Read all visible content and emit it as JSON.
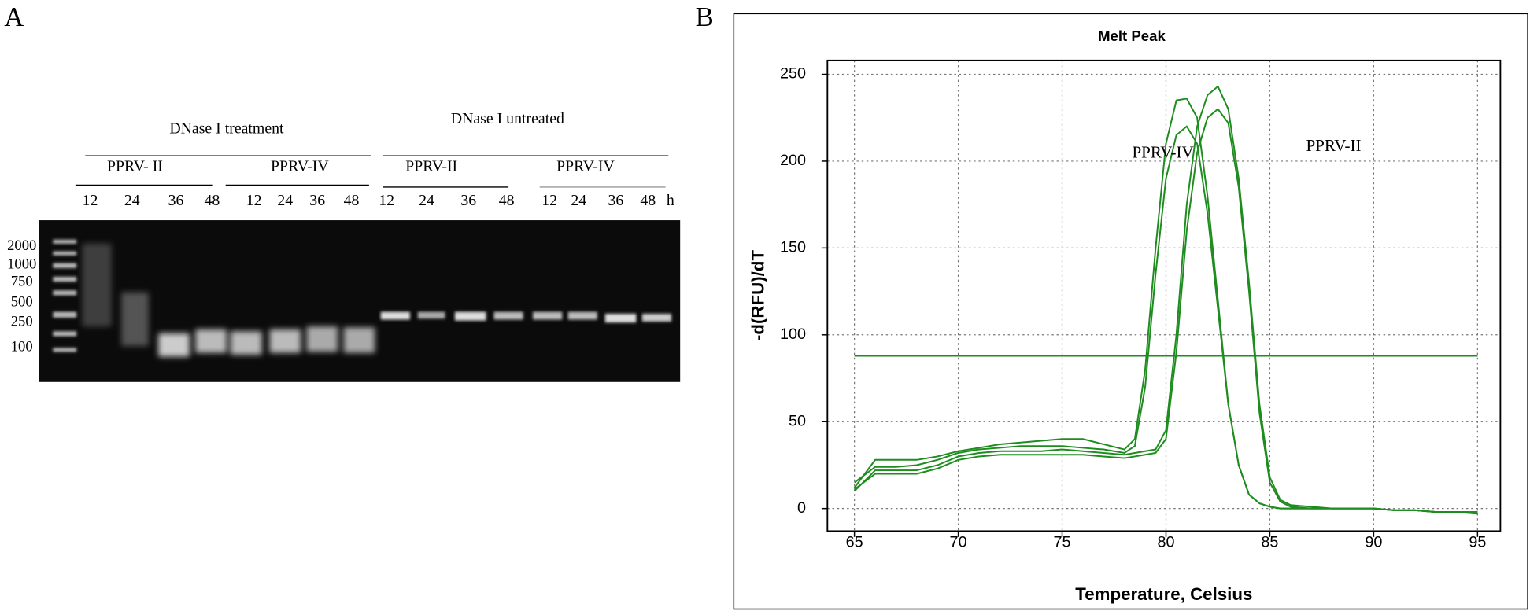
{
  "panel_a": {
    "label": "A",
    "headers": [
      "DNase I treatment",
      "DNase I untreated"
    ],
    "groups": [
      "PPRV- II",
      "PPRV-IV",
      "PPRV-II",
      "PPRV-IV"
    ],
    "lanes": [
      "12",
      "24",
      "36",
      "48",
      "12",
      "24",
      "36",
      "48",
      "12",
      "24",
      "36",
      "48",
      "12",
      "24",
      "36",
      "48",
      "h"
    ],
    "ladder": [
      "2000",
      "1000",
      "750",
      "500",
      "250",
      "100"
    ]
  },
  "panel_b_label": "B",
  "chart_data": {
    "type": "line",
    "title": "Melt Peak",
    "x_label": "Temperature, Celsius",
    "y_label": "-d(RFU)/dT",
    "annotations": [
      "PPRV-IV",
      "PPRV-II"
    ],
    "x": [
      65,
      66,
      67,
      68,
      69,
      70,
      71,
      72,
      73,
      74,
      75,
      76,
      77,
      78,
      78.5,
      79,
      79.5,
      80,
      80.5,
      81,
      81.5,
      82,
      82.5,
      83,
      83.5,
      84,
      84.5,
      85,
      85.5,
      86,
      87,
      88,
      89,
      90,
      91,
      92,
      93,
      94,
      95
    ],
    "series": [
      {
        "color": "#1e8c1e",
        "values": [
          12,
          28,
          28,
          28,
          30,
          33,
          35,
          37,
          38,
          39,
          40,
          40,
          37,
          34,
          40,
          80,
          150,
          210,
          235,
          236,
          225,
          180,
          120,
          60,
          25,
          8,
          3,
          1,
          0,
          0,
          0,
          0,
          0,
          0,
          -1,
          -1,
          -2,
          -2,
          -3
        ]
      },
      {
        "color": "#1e8c1e",
        "values": [
          15,
          24,
          24,
          25,
          28,
          32,
          34,
          35,
          36,
          36,
          36,
          35,
          34,
          32,
          36,
          70,
          135,
          190,
          215,
          220,
          210,
          170,
          115,
          60,
          25,
          8,
          3,
          1,
          0,
          0,
          0,
          0,
          0,
          0,
          -1,
          -1,
          -2,
          -2,
          -3
        ]
      },
      {
        "color": "#1e8c1e",
        "values": [
          10,
          22,
          22,
          22,
          25,
          30,
          32,
          33,
          33,
          33,
          34,
          33,
          32,
          31,
          32,
          33,
          34,
          45,
          100,
          175,
          220,
          238,
          243,
          230,
          190,
          130,
          60,
          18,
          5,
          2,
          1,
          0,
          0,
          0,
          -1,
          -1,
          -2,
          -2,
          -2
        ]
      },
      {
        "color": "#1e8c1e",
        "values": [
          11,
          20,
          20,
          20,
          23,
          28,
          30,
          31,
          31,
          31,
          31,
          31,
          30,
          29,
          30,
          31,
          32,
          40,
          90,
          160,
          205,
          225,
          230,
          222,
          185,
          125,
          55,
          15,
          4,
          1,
          0,
          0,
          0,
          0,
          -1,
          -1,
          -2,
          -2,
          -2
        ]
      }
    ],
    "threshold": 88,
    "xlim": [
      63.7,
      96.1
    ],
    "ylim": [
      -13,
      258
    ],
    "xticks": [
      65,
      70,
      75,
      80,
      85,
      90,
      95
    ],
    "yticks": [
      0,
      50,
      100,
      150,
      200,
      250
    ],
    "grid": true
  }
}
